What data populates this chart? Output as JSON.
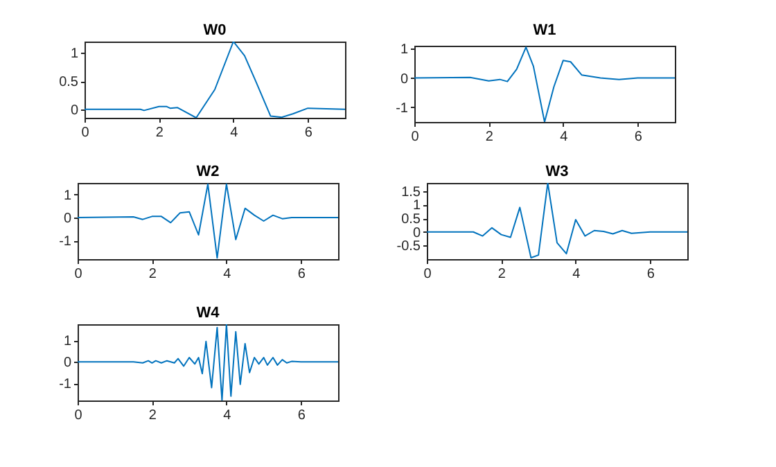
{
  "chart_data": [
    {
      "type": "line",
      "title": "W0",
      "color": "#0072bd",
      "xlim": [
        0,
        7
      ],
      "ylim": [
        -0.15,
        1.2
      ],
      "xticks": [
        0,
        2,
        4,
        6
      ],
      "yticks": [
        0,
        0.5,
        1
      ],
      "x": [
        0,
        1.5,
        1.6,
        2,
        2.2,
        2.3,
        2.5,
        3,
        3.5,
        4,
        4.3,
        4.6,
        5,
        5.3,
        5.6,
        6,
        6.5,
        7
      ],
      "values": [
        0,
        0,
        -0.02,
        0.05,
        0.05,
        0.02,
        0.03,
        -0.15,
        0.35,
        1.2,
        0.95,
        0.5,
        -0.12,
        -0.14,
        -0.08,
        0.02,
        0.01,
        0
      ]
    },
    {
      "type": "line",
      "title": "W1",
      "color": "#0072bd",
      "xlim": [
        0,
        7
      ],
      "ylim": [
        -1.5,
        1.1
      ],
      "xticks": [
        0,
        2,
        4,
        6
      ],
      "yticks": [
        -1,
        0,
        1
      ],
      "x": [
        0,
        1.5,
        2,
        2.3,
        2.5,
        2.75,
        3,
        3.2,
        3.5,
        3.75,
        4,
        4.2,
        4.5,
        5,
        5.5,
        6,
        7
      ],
      "values": [
        0,
        0.02,
        -0.1,
        -0.05,
        -0.12,
        0.3,
        1.05,
        0.4,
        -1.5,
        -0.3,
        0.6,
        0.55,
        0.1,
        0,
        -0.05,
        0,
        0
      ]
    },
    {
      "type": "line",
      "title": "W2",
      "color": "#0072bd",
      "xlim": [
        0,
        7
      ],
      "ylim": [
        -1.8,
        1.5
      ],
      "xticks": [
        0,
        2,
        4,
        6
      ],
      "yticks": [
        -1,
        0,
        1
      ],
      "x": [
        0,
        1.5,
        1.75,
        2,
        2.25,
        2.5,
        2.75,
        3,
        3.25,
        3.5,
        3.75,
        4,
        4.25,
        4.5,
        4.75,
        5,
        5.25,
        5.5,
        5.75,
        7
      ],
      "values": [
        0,
        0.03,
        -0.08,
        0.05,
        0.05,
        -0.22,
        0.2,
        0.25,
        -0.75,
        1.45,
        -1.75,
        1.45,
        -0.95,
        0.4,
        0.1,
        -0.15,
        0.1,
        -0.05,
        0,
        0
      ]
    },
    {
      "type": "line",
      "title": "W3",
      "color": "#0072bd",
      "xlim": [
        0,
        7
      ],
      "ylim": [
        -1,
        1.8
      ],
      "xticks": [
        0,
        2,
        4,
        6
      ],
      "yticks": [
        -0.5,
        0,
        0.5,
        1,
        1.5
      ],
      "x": [
        0,
        1.25,
        1.5,
        1.75,
        2,
        2.25,
        2.5,
        2.8,
        3,
        3.25,
        3.5,
        3.75,
        4,
        4.25,
        4.5,
        4.75,
        5,
        5.25,
        5.5,
        6,
        7
      ],
      "values": [
        0,
        0,
        -0.15,
        0.15,
        -0.1,
        -0.2,
        0.9,
        -0.95,
        -0.85,
        1.8,
        -0.4,
        -0.8,
        0.45,
        -0.15,
        0.05,
        0.02,
        -0.07,
        0.05,
        -0.05,
        0,
        0
      ]
    },
    {
      "type": "line",
      "title": "W4",
      "color": "#0072bd",
      "xlim": [
        0,
        7
      ],
      "ylim": [
        -1.8,
        1.75
      ],
      "xticks": [
        0,
        2,
        4,
        6
      ],
      "yticks": [
        -1,
        0,
        1
      ],
      "x": [
        0,
        1.5,
        1.75,
        1.9,
        2,
        2.1,
        2.25,
        2.4,
        2.6,
        2.7,
        2.85,
        3,
        3.15,
        3.25,
        3.35,
        3.45,
        3.6,
        3.75,
        3.88,
        4,
        4.12,
        4.25,
        4.37,
        4.5,
        4.62,
        4.75,
        4.87,
        5,
        5.1,
        5.25,
        5.37,
        5.5,
        5.62,
        5.75,
        6,
        7
      ],
      "values": [
        0,
        0,
        -0.05,
        0.05,
        -0.05,
        0.05,
        -0.05,
        0.05,
        -0.05,
        0.15,
        -0.2,
        0.2,
        -0.1,
        0.2,
        -0.55,
        0.95,
        -1.2,
        1.6,
        -1.8,
        1.75,
        -1.6,
        1.4,
        -1.05,
        0.85,
        -0.5,
        0.2,
        -0.1,
        0.2,
        -0.15,
        0.2,
        -0.15,
        0.1,
        -0.05,
        0.02,
        0,
        0
      ]
    }
  ]
}
